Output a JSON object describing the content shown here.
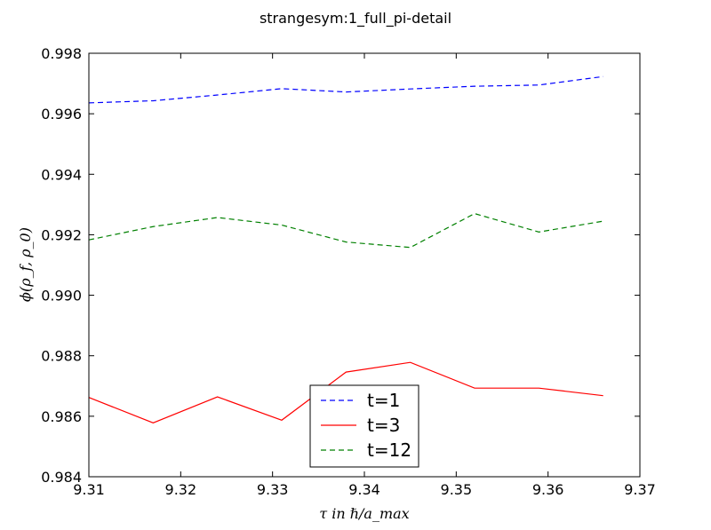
{
  "chart_data": {
    "type": "line",
    "title": "strangesym:1_full_pi-detail",
    "xlabel": "τ in ℏ/a_max",
    "ylabel": "ϕ(ρ_f, ρ_0)",
    "xlim": [
      9.31,
      9.37
    ],
    "ylim": [
      0.984,
      0.998
    ],
    "xticks": [
      "9.31",
      "9.32",
      "9.33",
      "9.34",
      "9.35",
      "9.36",
      "9.37"
    ],
    "yticks": [
      "0.984",
      "0.986",
      "0.988",
      "0.990",
      "0.992",
      "0.994",
      "0.996",
      "0.998"
    ],
    "x": [
      9.31,
      9.317,
      9.324,
      9.331,
      9.338,
      9.345,
      9.352,
      9.359,
      9.366
    ],
    "series": [
      {
        "name": "t=1",
        "color": "#0000ff",
        "style": "dashed",
        "values": [
          0.99636,
          0.99643,
          0.99662,
          0.99683,
          0.99672,
          0.99682,
          0.99691,
          0.99695,
          0.99723
        ]
      },
      {
        "name": "t=3",
        "color": "#ff0000",
        "style": "solid",
        "values": [
          0.98662,
          0.98578,
          0.98664,
          0.98587,
          0.98746,
          0.98778,
          0.98693,
          0.98693,
          0.98668
        ]
      },
      {
        "name": "t=12",
        "color": "#008000",
        "style": "dashed",
        "values": [
          0.99183,
          0.99227,
          0.99257,
          0.99232,
          0.99176,
          0.99158,
          0.9927,
          0.99209,
          0.99245
        ]
      }
    ],
    "grid": false,
    "legend": "lower-center"
  }
}
